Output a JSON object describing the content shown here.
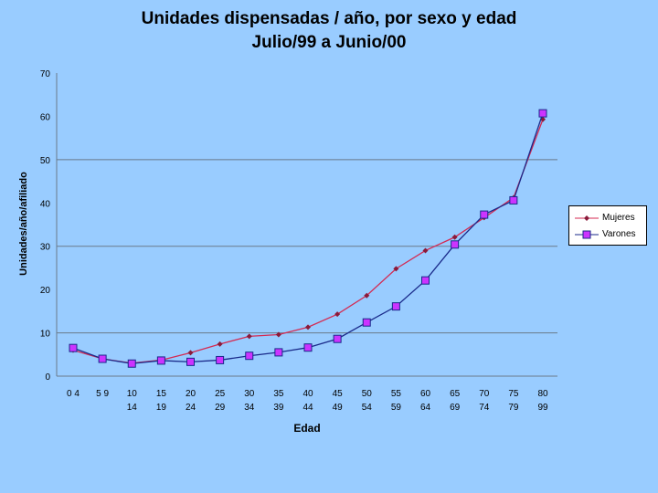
{
  "title_line1": "Unidades dispensadas / año, por sexo y edad",
  "title_line2": "Julio/99 a Junio/00",
  "colors": {
    "background": "#99ccff",
    "mujeres": "#d42a52",
    "varones": "#1a2a8a",
    "varones_marker": "#cc33ff",
    "gridline": "#6a7a8a"
  },
  "chart_data": {
    "type": "line",
    "xlabel": "Edad",
    "ylabel": "Unidades/año/afiliado",
    "ylim": [
      0,
      70
    ],
    "yticks": [
      0,
      10,
      20,
      30,
      40,
      50,
      60,
      70
    ],
    "grid": true,
    "legend_position": "right",
    "categories": [
      [
        "0 4",
        ""
      ],
      [
        "5 9",
        ""
      ],
      [
        "10",
        "14"
      ],
      [
        "15",
        "19"
      ],
      [
        "20",
        "24"
      ],
      [
        "25",
        "29"
      ],
      [
        "30",
        "34"
      ],
      [
        "35",
        "39"
      ],
      [
        "40",
        "44"
      ],
      [
        "45",
        "49"
      ],
      [
        "50",
        "54"
      ],
      [
        "55",
        "59"
      ],
      [
        "60",
        "64"
      ],
      [
        "65",
        "69"
      ],
      [
        "70",
        "74"
      ],
      [
        "75",
        "79"
      ],
      [
        "80",
        "99"
      ]
    ],
    "series": [
      {
        "name": "Mujeres",
        "marker": "diamond",
        "values": [
          6,
          4,
          3,
          3.7,
          5.4,
          7.4,
          9.2,
          9.6,
          11.3,
          14.3,
          18.6,
          24.8,
          29,
          32.1,
          36.6,
          41.2,
          59.3
        ]
      },
      {
        "name": "Varones",
        "marker": "square",
        "values": [
          6.5,
          4,
          2.9,
          3.6,
          3.3,
          3.7,
          4.7,
          5.5,
          6.6,
          8.6,
          12.4,
          16.1,
          22.1,
          30.4,
          37.3,
          40.6,
          60.7
        ]
      }
    ]
  }
}
